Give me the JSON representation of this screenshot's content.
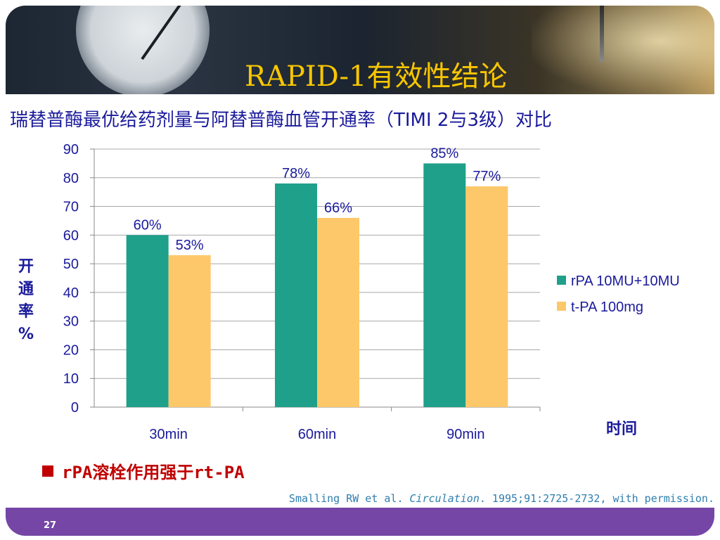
{
  "slide": {
    "title": "RAPID-1有效性结论",
    "subtitle": "瑞替普酶最优给药剂量与阿替普酶血管开通率（TIMI 2与3级）对比",
    "y_axis_label": "开通率%",
    "x_axis_label": "时间",
    "bullet": "rPA溶栓作用强于rt-PA",
    "citation_prefix": "Smalling RW et al. ",
    "citation_journal": "Circulation",
    "citation_suffix": ". 1995;91:2725-2732, with permission.",
    "page_number": "27"
  },
  "colors": {
    "series_rpa": "#1fa08a",
    "series_tpa": "#fdc86a",
    "title_color": "#f7c600",
    "text_blue": "#1a1a9c",
    "footer": "#7546a6"
  },
  "chart_data": {
    "type": "bar",
    "categories": [
      "30min",
      "60min",
      "90min"
    ],
    "series": [
      {
        "name": "rPA 10MU+10MU",
        "values": [
          60,
          78,
          85
        ],
        "labels": [
          "60%",
          "78%",
          "85%"
        ]
      },
      {
        "name": "t-PA 100mg",
        "values": [
          53,
          66,
          77
        ],
        "labels": [
          "53%",
          "66%",
          "77%"
        ]
      }
    ],
    "yticks": [
      "0",
      "10",
      "20",
      "30",
      "40",
      "50",
      "60",
      "70",
      "80",
      "90"
    ],
    "ylim": [
      0,
      90
    ],
    "grid": true,
    "legend_position": "right"
  }
}
